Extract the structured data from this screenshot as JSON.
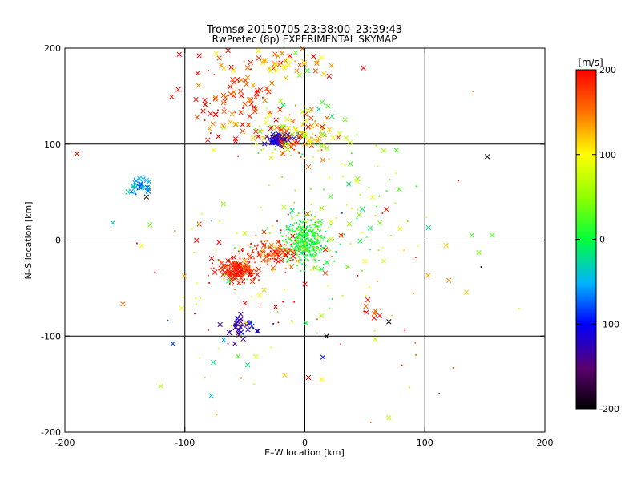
{
  "chart_data": {
    "type": "scatter",
    "title": "Tromsø 20150705 23:38:00–23:39:43",
    "subtitle": "RwPretec (8p) EXPERIMENTAL SKYMAP",
    "xlabel": "E–W location [km]",
    "ylabel": "N–S location [km]",
    "xlim": [
      -200,
      200
    ],
    "ylim": [
      -200,
      200
    ],
    "xticks": [
      -200,
      -100,
      0,
      100,
      200
    ],
    "yticks": [
      -200,
      -100,
      0,
      100,
      200
    ],
    "grid": true,
    "colorbar": {
      "label": "[m/s]",
      "range": [
        -200,
        200
      ],
      "ticks": [
        200,
        100,
        0,
        -100,
        -200
      ]
    },
    "markers": [
      "x (large)",
      "dot (small)"
    ],
    "clusters": [
      {
        "region": "central",
        "x": 0,
        "y": 0,
        "spread_x": 9,
        "spread_y": 11,
        "velocity": 10,
        "vel_spread": 18,
        "count": 420,
        "big_frac": 0.03
      },
      {
        "region": "south-west red",
        "x": -57,
        "y": -32,
        "spread_x": 9,
        "spread_y": 6,
        "velocity": 185,
        "vel_spread": 15,
        "count": 190,
        "big_frac": 0.3
      },
      {
        "region": "diagonal red band",
        "x": -28,
        "y": -12,
        "spread_x": 11,
        "spread_y": 7,
        "velocity": 175,
        "vel_spread": 25,
        "count": 140,
        "big_frac": 0.25
      },
      {
        "region": "north blue cluster",
        "x": -22,
        "y": 105,
        "spread_x": 5,
        "spread_y": 3,
        "velocity": -120,
        "vel_spread": 15,
        "count": 80,
        "big_frac": 0.5
      },
      {
        "region": "north mixed",
        "x": -10,
        "y": 110,
        "spread_x": 22,
        "spread_y": 14,
        "velocity": 100,
        "vel_spread": 60,
        "count": 160,
        "big_frac": 0.45
      },
      {
        "region": "north-west red",
        "x": -55,
        "y": 145,
        "spread_x": 22,
        "spread_y": 22,
        "velocity": 180,
        "vel_spread": 25,
        "count": 85,
        "big_frac": 0.8
      },
      {
        "region": "north top",
        "x": -25,
        "y": 185,
        "spread_x": 30,
        "spread_y": 10,
        "velocity": 140,
        "vel_spread": 50,
        "count": 65,
        "big_frac": 0.85
      },
      {
        "region": "far west cyan",
        "x": -137,
        "y": 55,
        "spread_x": 5,
        "spread_y": 5,
        "velocity": -50,
        "vel_spread": 20,
        "count": 40,
        "big_frac": 0.5
      },
      {
        "region": "south blue cluster",
        "x": -53,
        "y": -92,
        "spread_x": 7,
        "spread_y": 6,
        "velocity": -120,
        "vel_spread": 20,
        "count": 45,
        "big_frac": 0.6
      },
      {
        "region": "east green tail",
        "x": 40,
        "y": 40,
        "spread_x": 30,
        "spread_y": 35,
        "velocity": 40,
        "vel_spread": 50,
        "count": 70,
        "big_frac": 0.3
      },
      {
        "region": "scattered",
        "x": -20,
        "y": -40,
        "spread_x": 60,
        "spread_y": 55,
        "velocity": 120,
        "vel_spread": 80,
        "count": 150,
        "big_frac": 0.25
      },
      {
        "region": "south-east red",
        "x": 58,
        "y": -75,
        "spread_x": 6,
        "spread_y": 6,
        "velocity": 180,
        "vel_spread": 30,
        "count": 10,
        "big_frac": 0.8
      }
    ],
    "points": [
      {
        "x": 152,
        "y": 87,
        "v": -200,
        "m": "x"
      },
      {
        "x": 103,
        "y": 13,
        "v": -20,
        "m": "x"
      },
      {
        "x": 156,
        "y": 5,
        "v": 30,
        "m": "x"
      },
      {
        "x": 120,
        "y": -42,
        "v": 150,
        "m": "x"
      },
      {
        "x": 145,
        "y": -13,
        "v": 40,
        "m": "x"
      },
      {
        "x": 70,
        "y": -85,
        "v": -200,
        "m": "x"
      },
      {
        "x": 18,
        "y": -100,
        "v": -200,
        "m": "x"
      },
      {
        "x": 15,
        "y": -122,
        "v": -100,
        "m": "x"
      },
      {
        "x": -110,
        "y": -108,
        "v": -80,
        "m": "x"
      },
      {
        "x": -120,
        "y": -152,
        "v": 60,
        "m": "x"
      },
      {
        "x": -78,
        "y": -162,
        "v": -40,
        "m": "x"
      },
      {
        "x": 70,
        "y": -185,
        "v": 70,
        "m": "x"
      },
      {
        "x": -190,
        "y": 90,
        "v": 190,
        "m": "x"
      },
      {
        "x": -160,
        "y": 18,
        "v": -30,
        "m": "x"
      },
      {
        "x": -132,
        "y": 45,
        "v": -200,
        "m": "x"
      },
      {
        "x": 112,
        "y": -160,
        "v": -200,
        "m": "dot"
      },
      {
        "x": 55,
        "y": -190,
        "v": 160,
        "m": "dot"
      },
      {
        "x": 140,
        "y": 155,
        "v": 150,
        "m": "dot"
      },
      {
        "x": 128,
        "y": 62,
        "v": 190,
        "m": "dot"
      },
      {
        "x": 147,
        "y": -28,
        "v": -200,
        "m": "dot"
      },
      {
        "x": 92,
        "y": -107,
        "v": 160,
        "m": "dot"
      },
      {
        "x": 68,
        "y": 32,
        "v": 190,
        "m": "x"
      }
    ]
  }
}
